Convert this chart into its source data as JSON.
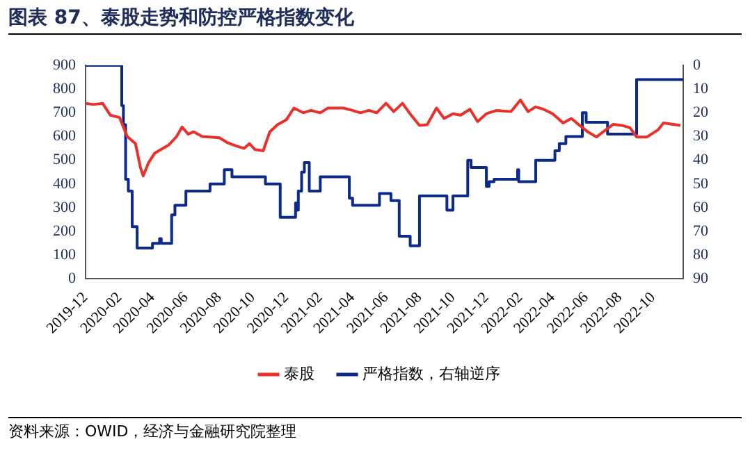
{
  "chart_data": {
    "type": "line",
    "title": "图表 87、泰股走势和防控严格指数变化",
    "legend": "bottom",
    "grid": false,
    "marker": "none",
    "line_style": "solid",
    "xlim": [
      "2019-12-01",
      "2022-11-25"
    ],
    "xticks": [
      "2019-12",
      "2020-02",
      "2020-04",
      "2020-06",
      "2020-08",
      "2020-10",
      "2020-12",
      "2021-02",
      "2021-04",
      "2021-06",
      "2021-08",
      "2021-10",
      "2021-12",
      "2022-02",
      "2022-04",
      "2022-06",
      "2022-08",
      "2022-10"
    ],
    "ylim": [
      0,
      900
    ],
    "yticks": [
      0,
      100,
      200,
      300,
      400,
      500,
      600,
      700,
      800,
      900
    ],
    "y2lim": [
      90,
      0
    ],
    "y2ticks": [
      0,
      10,
      20,
      30,
      40,
      50,
      60,
      70,
      80,
      90
    ],
    "series": [
      {
        "name": "泰股",
        "type": "line",
        "color": "#e8312a",
        "x": [
          "2019-12-01",
          "2019-12-15",
          "2020-01-01",
          "2020-01-15",
          "2020-02-01",
          "2020-02-15",
          "2020-03-01",
          "2020-03-10",
          "2020-03-15",
          "2020-03-25",
          "2020-04-05",
          "2020-04-20",
          "2020-05-01",
          "2020-05-15",
          "2020-05-25",
          "2020-06-05",
          "2020-06-15",
          "2020-07-01",
          "2020-08-01",
          "2020-08-15",
          "2020-09-01",
          "2020-09-15",
          "2020-09-25",
          "2020-10-05",
          "2020-10-20",
          "2020-11-01",
          "2020-11-15",
          "2020-12-01",
          "2020-12-15",
          "2021-01-01",
          "2021-01-15",
          "2021-02-01",
          "2021-02-15",
          "2021-03-15",
          "2021-04-01",
          "2021-04-15",
          "2021-05-01",
          "2021-05-15",
          "2021-06-01",
          "2021-06-15",
          "2021-07-01",
          "2021-07-15",
          "2021-08-01",
          "2021-08-15",
          "2021-09-01",
          "2021-09-15",
          "2021-10-01",
          "2021-10-15",
          "2021-11-01",
          "2021-11-15",
          "2021-12-01",
          "2021-12-20",
          "2022-01-15",
          "2022-02-01",
          "2022-02-15",
          "2022-03-01",
          "2022-03-15",
          "2022-04-01",
          "2022-04-20",
          "2022-05-05",
          "2022-05-20",
          "2022-06-05",
          "2022-06-20",
          "2022-07-01",
          "2022-07-20",
          "2022-08-05",
          "2022-08-20",
          "2022-09-01",
          "2022-09-20",
          "2022-10-10",
          "2022-10-20",
          "2022-11-20"
        ],
        "values": [
          740,
          735,
          740,
          690,
          680,
          600,
          570,
          470,
          434,
          490,
          530,
          550,
          565,
          600,
          640,
          610,
          620,
          600,
          595,
          575,
          560,
          550,
          570,
          545,
          540,
          620,
          650,
          670,
          720,
          700,
          710,
          700,
          720,
          720,
          710,
          700,
          710,
          700,
          740,
          705,
          740,
          695,
          647,
          650,
          720,
          676,
          696,
          690,
          715,
          663,
          696,
          710,
          705,
          754,
          705,
          725,
          715,
          696,
          657,
          676,
          647,
          618,
          598,
          618,
          651,
          647,
          637,
          598,
          598,
          628,
          657,
          647
        ]
      },
      {
        "name": "严格指数，右轴逆序",
        "type": "step",
        "axis": "y2",
        "color": "#0d2a8a",
        "x": [
          "2019-12-01",
          "2020-02-05",
          "2020-02-08",
          "2020-02-12",
          "2020-02-17",
          "2020-02-24",
          "2020-02-26",
          "2020-03-04",
          "2020-04-01",
          "2020-04-14",
          "2020-04-17",
          "2020-05-06",
          "2020-05-12",
          "2020-06-01",
          "2020-07-15",
          "2020-08-10",
          "2020-08-24",
          "2020-10-24",
          "2020-11-20",
          "2020-12-18",
          "2020-12-20",
          "2020-12-23",
          "2020-12-29",
          "2021-01-03",
          "2021-01-12",
          "2021-02-01",
          "2021-03-26",
          "2021-04-01",
          "2021-05-20",
          "2021-06-10",
          "2021-06-25",
          "2021-07-15",
          "2021-08-01",
          "2021-09-20",
          "2021-10-01",
          "2021-10-28",
          "2021-11-03",
          "2021-12-01",
          "2021-12-06",
          "2021-12-15",
          "2022-01-27",
          "2022-01-29",
          "2022-03-01",
          "2022-04-05",
          "2022-04-13",
          "2022-04-25",
          "2022-05-25",
          "2022-06-01",
          "2022-07-10",
          "2022-09-01",
          "2022-11-25"
        ],
        "values": [
          0,
          17,
          25,
          48,
          53,
          68,
          68,
          77,
          75,
          73,
          75,
          63,
          59,
          53,
          50,
          44,
          47,
          50,
          64,
          58,
          61,
          53,
          45,
          41,
          53,
          47,
          56,
          59,
          54,
          57,
          72,
          76,
          55,
          61,
          55,
          40,
          43,
          51,
          49,
          48,
          44,
          49,
          40,
          36,
          33,
          30,
          20,
          24,
          29,
          6,
          6
        ]
      }
    ],
    "annotations": [
      "资料来源：OWID，经济与金融研究院整理"
    ]
  }
}
